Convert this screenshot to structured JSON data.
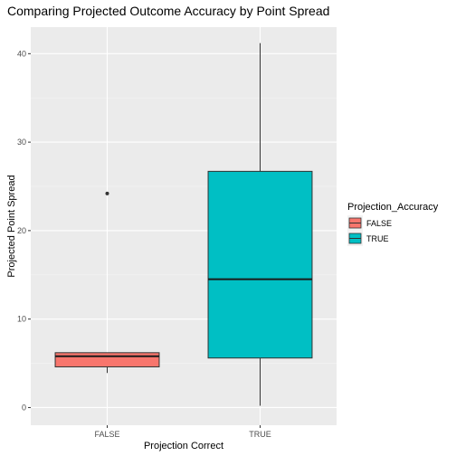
{
  "chart_data": {
    "type": "boxplot",
    "title": "Comparing Projected Outcome Accuracy by Point Spread",
    "xlabel": "Projection Correct",
    "ylabel": "Projected Point Spread",
    "categories": [
      "FALSE",
      "TRUE"
    ],
    "ylim": [
      -2,
      43
    ],
    "y_ticks": [
      0,
      10,
      20,
      30,
      40
    ],
    "grid": true,
    "legend": {
      "title": "Projection_Accuracy",
      "position": "right",
      "entries": [
        {
          "label": "FALSE",
          "color": "#F8766D"
        },
        {
          "label": "TRUE",
          "color": "#00BFC4"
        }
      ]
    },
    "boxes": [
      {
        "category": "FALSE",
        "min": 3.9,
        "q1": 4.6,
        "median": 5.8,
        "q3": 6.2,
        "max": 6.2,
        "outliers": [
          24.2
        ],
        "color": "#F8766D"
      },
      {
        "category": "TRUE",
        "min": 0.2,
        "q1": 5.6,
        "median": 14.5,
        "q3": 26.7,
        "max": 41.2,
        "outliers": [],
        "color": "#00BFC4"
      }
    ]
  }
}
